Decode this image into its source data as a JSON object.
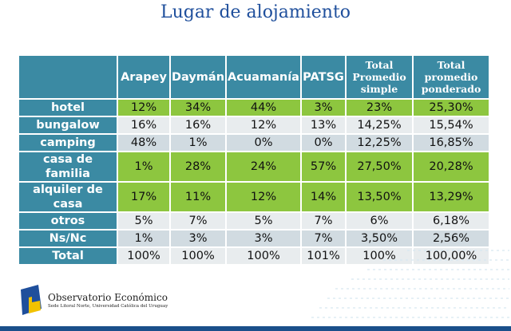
{
  "title": "Lugar de alojamiento",
  "table": {
    "headers": [
      "",
      "Arapey",
      "Daymán",
      "Acuamanía",
      "PATSG",
      "Total Promedio simple",
      "Total promedio ponderado"
    ],
    "rows": [
      {
        "label": "hotel",
        "values": [
          "12%",
          "34%",
          "44%",
          "3%",
          "23%",
          "25,30%"
        ]
      },
      {
        "label": "bungalow",
        "values": [
          "16%",
          "16%",
          "12%",
          "13%",
          "14,25%",
          "15,54%"
        ]
      },
      {
        "label": "camping",
        "values": [
          "48%",
          "1%",
          "0%",
          "0%",
          "12,25%",
          "16,85%"
        ]
      },
      {
        "label": "casa de familia",
        "values": [
          "1%",
          "28%",
          "24%",
          "57%",
          "27,50%",
          "20,28%"
        ]
      },
      {
        "label": "alquiler de casa",
        "values": [
          "17%",
          "11%",
          "12%",
          "14%",
          "13,50%",
          "13,29%"
        ]
      },
      {
        "label": "otros",
        "values": [
          "5%",
          "7%",
          "5%",
          "7%",
          "6%",
          "6,18%"
        ]
      },
      {
        "label": "Ns/Nc",
        "values": [
          "1%",
          "3%",
          "3%",
          "7%",
          "3,50%",
          "2,56%"
        ]
      },
      {
        "label": "Total",
        "values": [
          "100%",
          "100%",
          "100%",
          "101%",
          "100%",
          "100,00%"
        ]
      }
    ]
  },
  "footer": {
    "org_name": "Observatorio Económico",
    "org_sub": "Sede Litoral Norte, Universidad Católica del Uruguay"
  },
  "colors": {
    "header": "#3b8aa3",
    "green": "#8dc63f",
    "light": "#e8ecee",
    "dark": "#d1dbe1"
  }
}
